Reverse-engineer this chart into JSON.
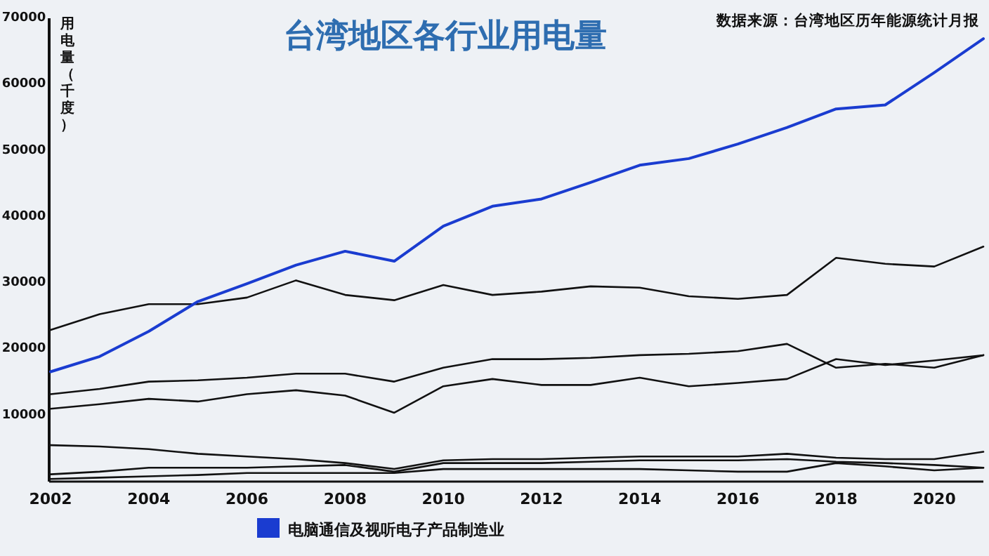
{
  "chart_data": {
    "type": "line",
    "title": "台湾地区各行业用电量",
    "ylabel": "用电量（千度）",
    "annotations": [
      "数据来源：台湾地区历年能源统计月报"
    ],
    "x": [
      2002,
      2003,
      2004,
      2005,
      2006,
      2007,
      2008,
      2009,
      2010,
      2011,
      2012,
      2013,
      2014,
      2015,
      2016,
      2017,
      2018,
      2019,
      2020,
      2021
    ],
    "xlim": [
      2002,
      2021
    ],
    "xticks": [
      2002,
      2004,
      2006,
      2008,
      2010,
      2012,
      2014,
      2016,
      2018,
      2020
    ],
    "ylim": [
      0,
      70000
    ],
    "yticks": [
      10000,
      20000,
      30000,
      40000,
      50000,
      60000,
      70000
    ],
    "legend": "bottom",
    "series": [
      {
        "name": "电脑通信及视听电子产品制造业",
        "color": "#1a3cd0",
        "values": [
          16600,
          18900,
          22700,
          27200,
          29900,
          32700,
          34800,
          33300,
          38600,
          41600,
          42700,
          45200,
          47800,
          48800,
          51000,
          53500,
          56300,
          56900,
          61800,
          66900
        ]
      },
      {
        "color": "#111111",
        "values": [
          22900,
          25300,
          26800,
          26800,
          27800,
          30400,
          28200,
          27400,
          29700,
          28200,
          28700,
          29500,
          29300,
          28000,
          27600,
          28200,
          33800,
          32900,
          32500,
          35500
        ]
      },
      {
        "color": "#111111",
        "values": [
          13200,
          14000,
          15100,
          15300,
          15700,
          16300,
          16300,
          15100,
          17200,
          18500,
          18500,
          18700,
          19100,
          19300,
          19700,
          20800,
          17200,
          17800,
          17200,
          19100
        ]
      },
      {
        "color": "#111111",
        "values": [
          11000,
          11700,
          12500,
          12100,
          13200,
          13800,
          13000,
          10400,
          14400,
          15500,
          14600,
          14600,
          15700,
          14400,
          14900,
          15500,
          18500,
          17600,
          18300,
          19100
        ]
      },
      {
        "color": "#111111",
        "values": [
          5500,
          5300,
          4900,
          4200,
          3800,
          3400,
          2800,
          1900,
          3200,
          3400,
          3400,
          3600,
          3800,
          3800,
          3800,
          4200,
          3600,
          3400,
          3400,
          4500
        ]
      },
      {
        "color": "#111111",
        "values": [
          1100,
          1500,
          2100,
          2100,
          2100,
          2300,
          2500,
          1500,
          2800,
          2800,
          2800,
          3000,
          3200,
          3200,
          3200,
          3400,
          3000,
          2800,
          2500,
          2100
        ]
      },
      {
        "color": "#111111",
        "values": [
          400,
          600,
          800,
          1000,
          1300,
          1300,
          1300,
          1300,
          1900,
          1900,
          1900,
          1900,
          1900,
          1700,
          1500,
          1500,
          2800,
          2300,
          1700,
          2100
        ]
      }
    ]
  }
}
